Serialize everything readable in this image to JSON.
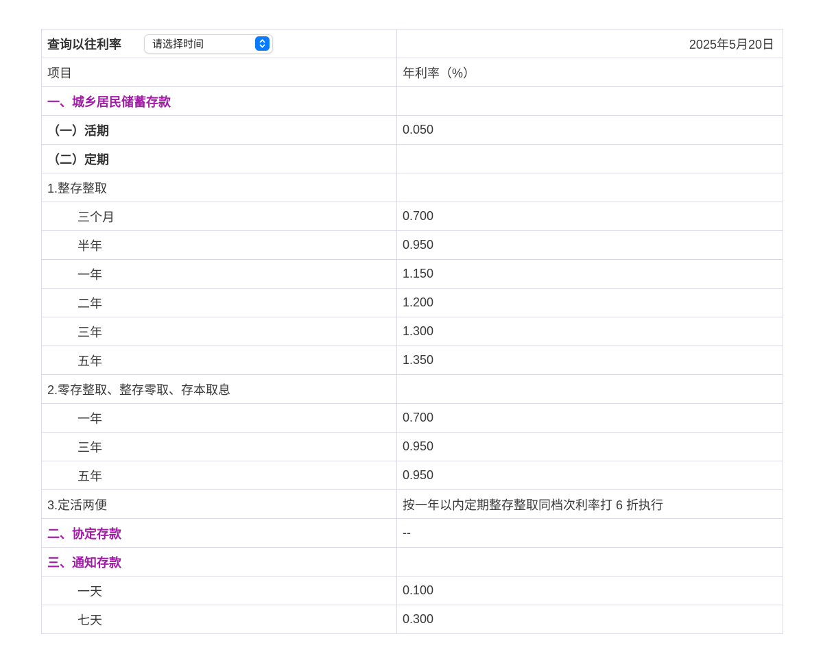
{
  "query": {
    "label": "查询以往利率",
    "select_value": "请选择时间",
    "select_icon": "chevron-up-down-icon"
  },
  "date": "2025年5月20日",
  "columns": {
    "item": "项目",
    "rate": "年利率（%）"
  },
  "rows": [
    {
      "label": "一、城乡居民储蓄存款",
      "value": "",
      "style": "section"
    },
    {
      "label": "（一）活期",
      "value": "0.050",
      "style": "sub-bold"
    },
    {
      "label": "（二）定期",
      "value": "",
      "style": "sub-bold"
    },
    {
      "label": "1.整存整取",
      "value": "",
      "style": "plain"
    },
    {
      "label": "三个月",
      "value": "0.700",
      "style": "term"
    },
    {
      "label": "半年",
      "value": "0.950",
      "style": "term"
    },
    {
      "label": "一年",
      "value": "1.150",
      "style": "term"
    },
    {
      "label": "二年",
      "value": "1.200",
      "style": "term"
    },
    {
      "label": "三年",
      "value": "1.300",
      "style": "term"
    },
    {
      "label": "五年",
      "value": "1.350",
      "style": "term"
    },
    {
      "label": "2.零存整取、整存零取、存本取息",
      "value": "",
      "style": "plain"
    },
    {
      "label": "一年",
      "value": "0.700",
      "style": "term"
    },
    {
      "label": "三年",
      "value": "0.950",
      "style": "term"
    },
    {
      "label": "五年",
      "value": "0.950",
      "style": "term"
    },
    {
      "label": "3.定活两便",
      "value": "按一年以内定期整存整取同档次利率打 6 折执行",
      "style": "plain"
    },
    {
      "label": "二、协定存款",
      "value": "--",
      "style": "section"
    },
    {
      "label": "三、通知存款",
      "value": "",
      "style": "section"
    },
    {
      "label": "一天",
      "value": "0.100",
      "style": "term"
    },
    {
      "label": "七天",
      "value": "0.300",
      "style": "term"
    }
  ],
  "colors": {
    "table_border": "#dcd9ea",
    "body_text": "#3a3a3a",
    "section_purple": "#a21ca8",
    "date_purple": "#951dcb",
    "stepper_blue": "#0a7aff"
  }
}
